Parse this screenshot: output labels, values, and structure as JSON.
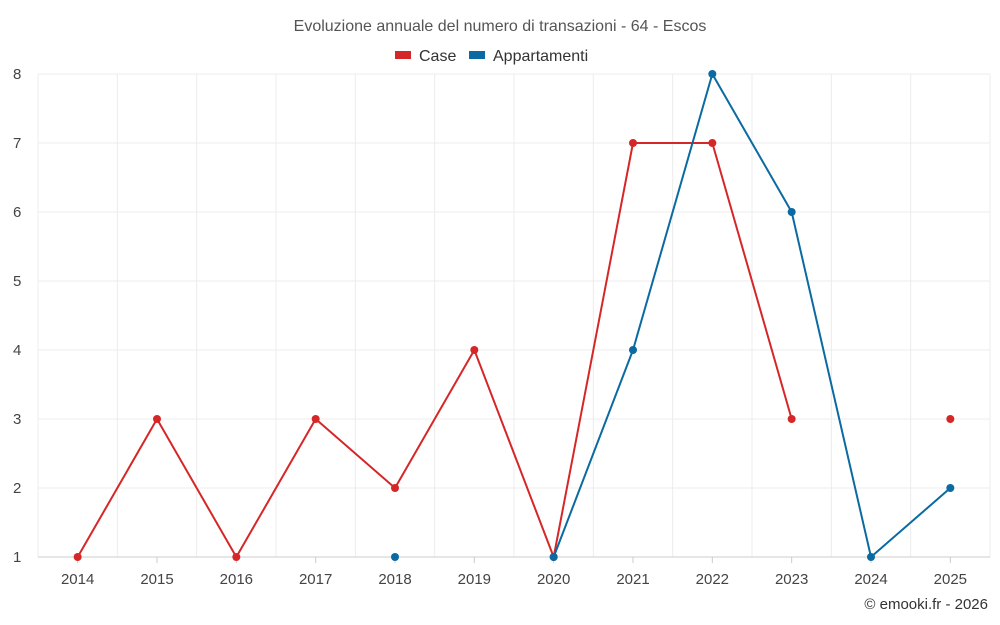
{
  "chart_data": {
    "type": "line",
    "title": "Evoluzione annuale del numero di transazioni - 64 - Escos",
    "categories": [
      "2014",
      "2015",
      "2016",
      "2017",
      "2018",
      "2019",
      "2020",
      "2021",
      "2022",
      "2023",
      "2024",
      "2025"
    ],
    "ylim": [
      1,
      8
    ],
    "yticks": [
      "1",
      "2",
      "3",
      "4",
      "5",
      "6",
      "7",
      "8"
    ],
    "grid": true,
    "legend_position": "top-center",
    "series": [
      {
        "name": "Case",
        "color": "#d62728",
        "values": [
          1,
          3,
          1,
          3,
          2,
          4,
          1,
          7,
          7,
          3,
          null,
          3
        ]
      },
      {
        "name": "Appartamenti",
        "color": "#0a6aa1",
        "values": [
          null,
          null,
          null,
          null,
          1,
          null,
          1,
          4,
          8,
          6,
          1,
          2
        ]
      }
    ]
  },
  "credit": "© emooki.fr - 2026"
}
